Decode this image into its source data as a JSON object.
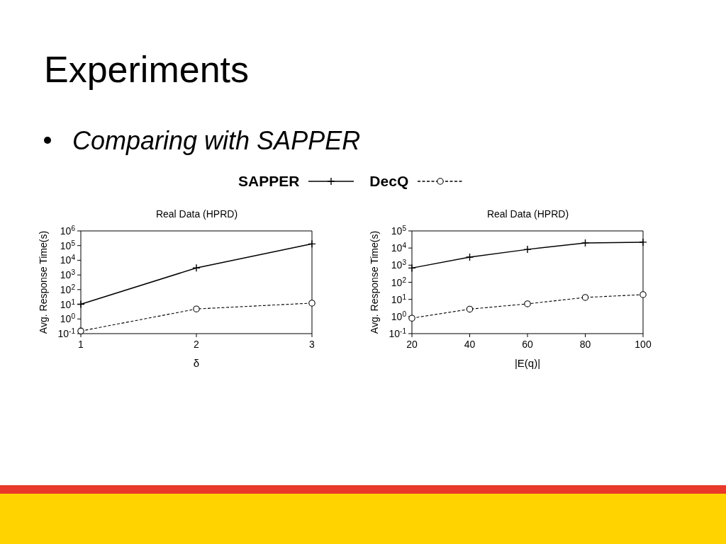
{
  "chart_data": [
    {
      "type": "line",
      "title": "Real Data (HPRD)",
      "xlabel": "δ",
      "ylabel": "Avg. Response Time(s)",
      "annotations": [
        "Experiments",
        "Comparing with SAPPER"
      ],
      "x": [
        1,
        2,
        3
      ],
      "xlim": [
        1,
        3
      ],
      "xticks": [
        1,
        2,
        3
      ],
      "ylim": [
        0.1,
        1000000
      ],
      "yticks": [
        {
          "value": 0.1,
          "label": "10$^{-1}$"
        },
        {
          "value": 1,
          "label": "10$^{0}$"
        },
        {
          "value": 10,
          "label": "10$^{1}$"
        },
        {
          "value": 100,
          "label": "10$^{2}$"
        },
        {
          "value": 1000,
          "label": "10$^{3}$"
        },
        {
          "value": 10000,
          "label": "10$^{4}$"
        },
        {
          "value": 100000,
          "label": "10$^{5}$"
        },
        {
          "value": 1000000,
          "label": "10$^{6}$"
        }
      ],
      "log": "y",
      "legend": "top",
      "series": [
        {
          "name": "SAPPER",
          "color": "#000000",
          "values": [
            10,
            3000,
            130000
          ],
          "marker": "cross",
          "line_style": "solid"
        },
        {
          "name": "DecQ",
          "color": "#000000",
          "values": [
            0.15,
            4.8,
            12
          ],
          "marker": "circle",
          "line_style": "dashed"
        }
      ]
    },
    {
      "type": "line",
      "title": "Real Data (HPRD)",
      "xlabel": "|E(q)|",
      "ylabel": "Avg. Response Time(s)",
      "x": [
        20,
        40,
        60,
        80,
        100
      ],
      "xlim": [
        20,
        100
      ],
      "xticks": [
        20,
        40,
        60,
        80,
        100
      ],
      "ylim": [
        0.1,
        100000
      ],
      "yticks": [
        {
          "value": 0.1,
          "label": "10$^{-1}$"
        },
        {
          "value": 1,
          "label": "10$^{0}$"
        },
        {
          "value": 10,
          "label": "10$^{1}$"
        },
        {
          "value": 100,
          "label": "10$^{2}$"
        },
        {
          "value": 1000,
          "label": "10$^{3}$"
        },
        {
          "value": 10000,
          "label": "10$^{4}$"
        },
        {
          "value": 100000,
          "label": "10$^{5}$"
        }
      ],
      "log": "y",
      "series": [
        {
          "color": "#000000",
          "values": [
            680,
            2950,
            8300,
            20000,
            22000
          ],
          "marker": "cross",
          "line_style": "solid"
        },
        {
          "color": "#000000",
          "values": [
            0.8,
            2.7,
            5.5,
            13,
            19
          ],
          "marker": "circle",
          "line_style": "dashed"
        }
      ]
    }
  ]
}
